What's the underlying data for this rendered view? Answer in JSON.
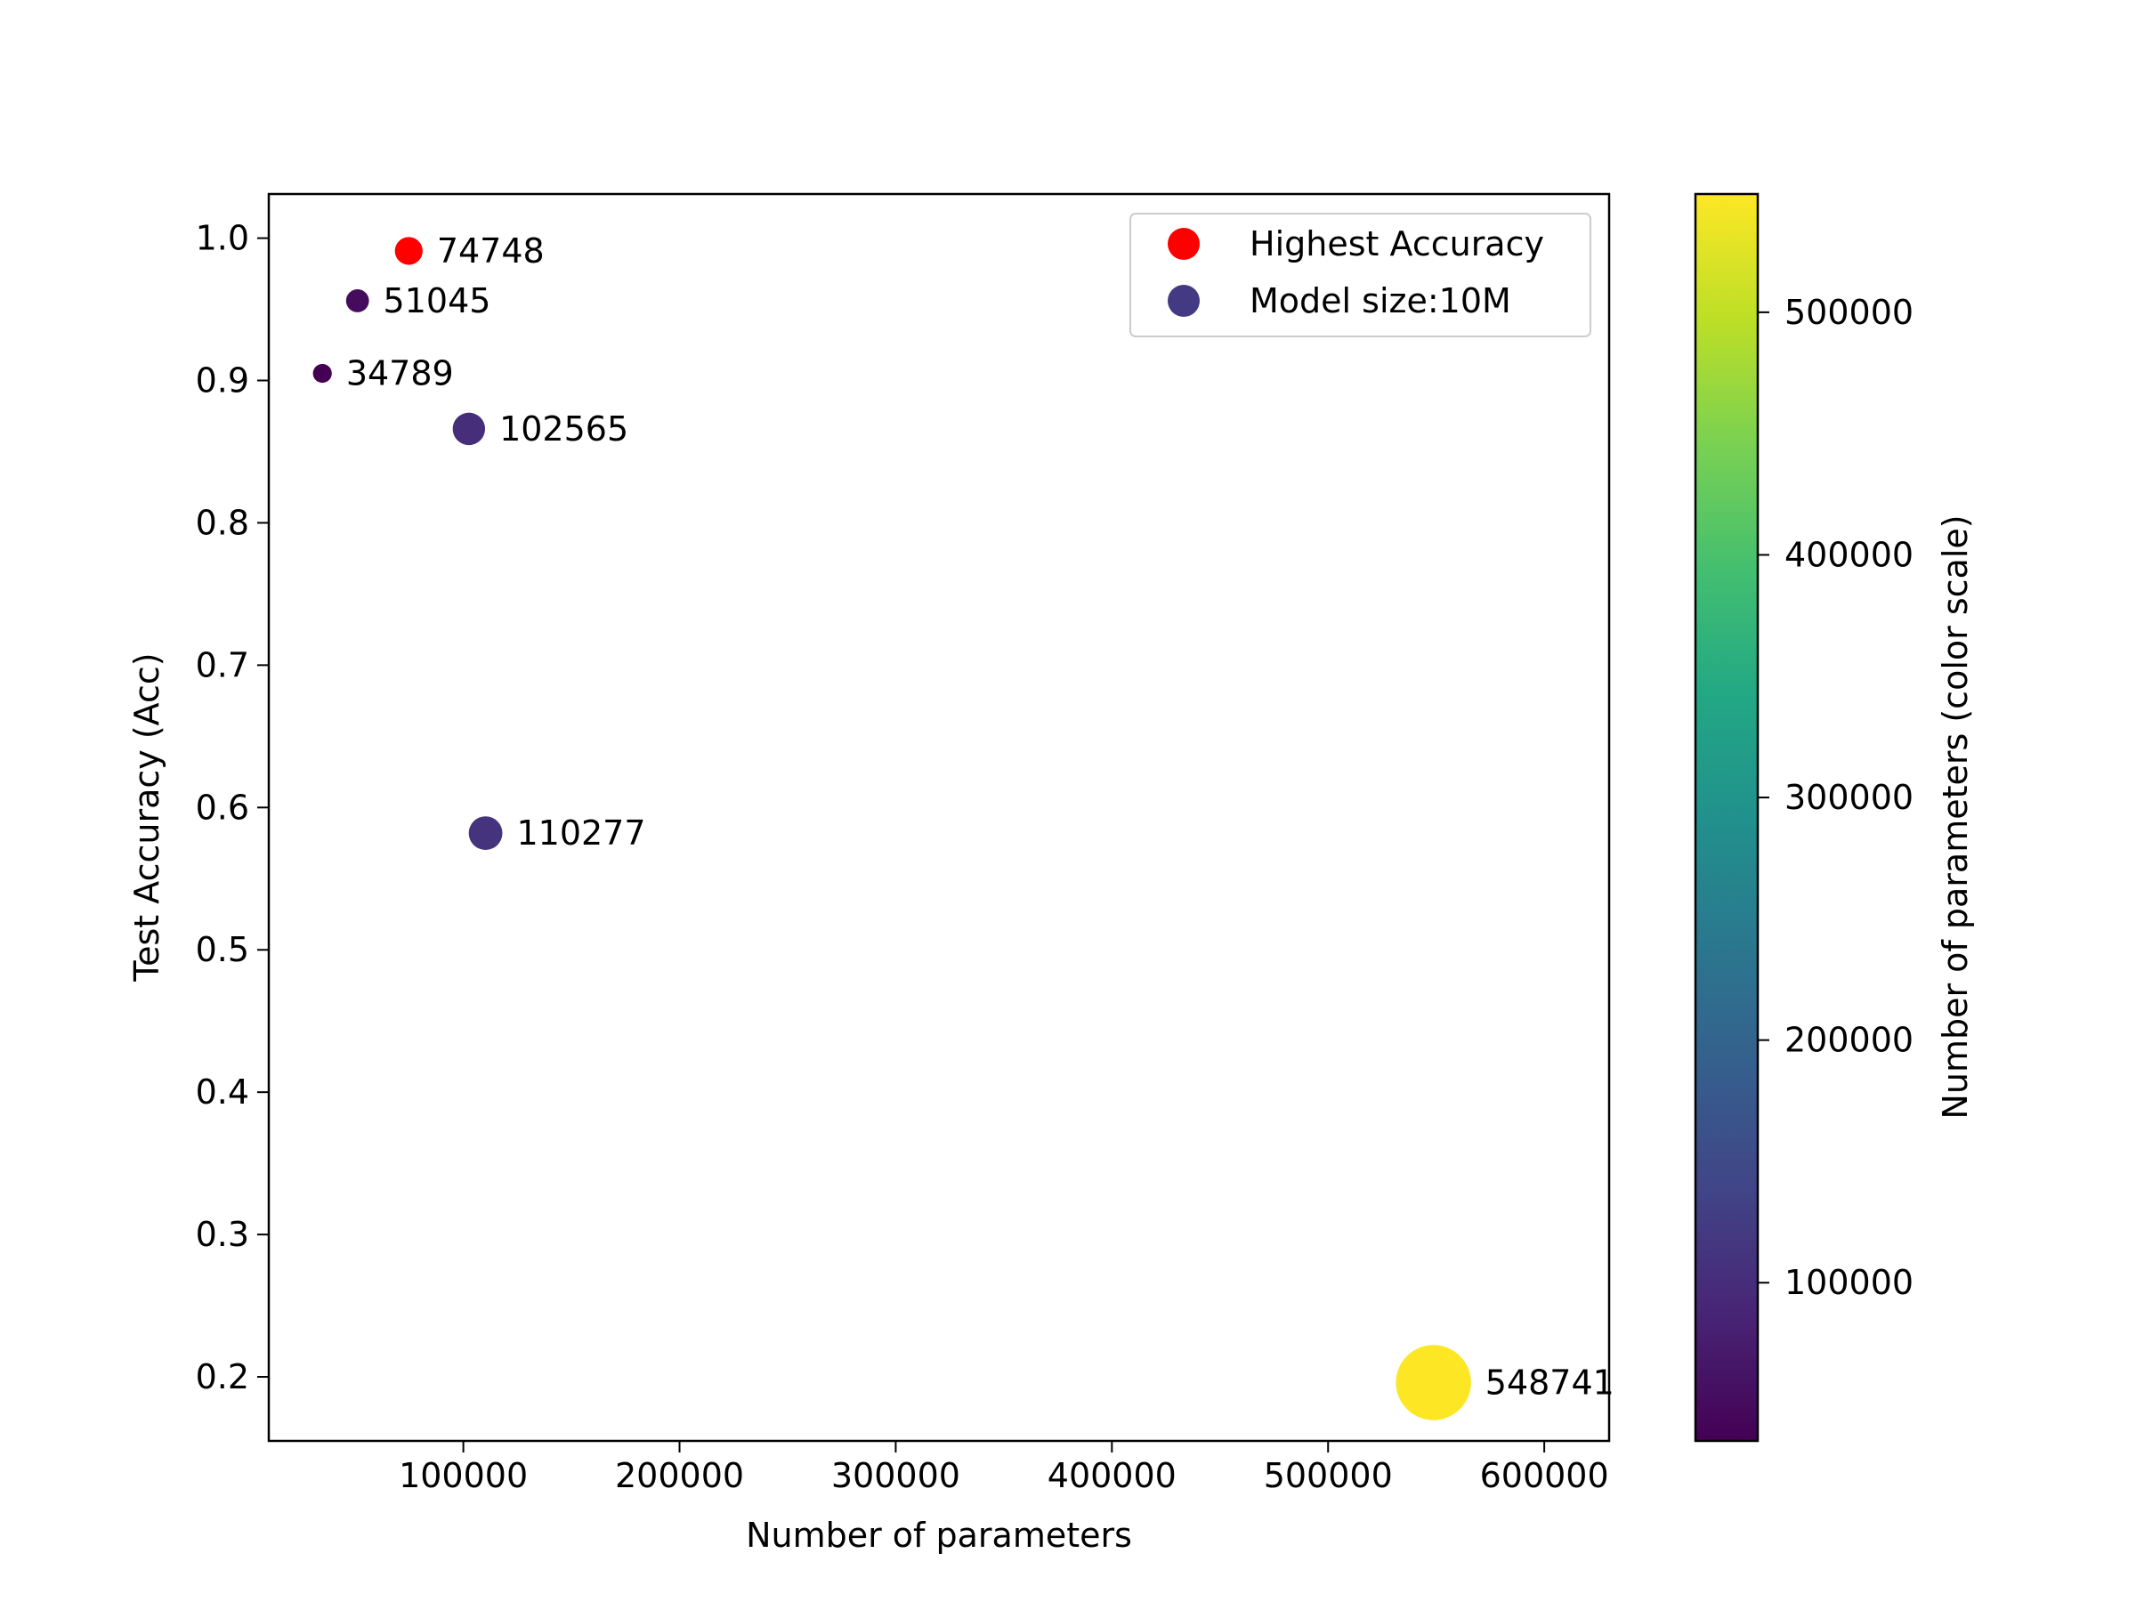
{
  "chart_data": {
    "type": "scatter",
    "xlabel": "Number of parameters",
    "ylabel": "Test Accuracy (Acc)",
    "xlim": [
      10000,
      630000
    ],
    "ylim": [
      0.155,
      1.031
    ],
    "x_ticks": [
      100000,
      200000,
      300000,
      400000,
      500000,
      600000
    ],
    "y_ticks": [
      0.2,
      0.3,
      0.4,
      0.5,
      0.6,
      0.7,
      0.8,
      0.9,
      1.0
    ],
    "x_tick_labels": [
      "100000",
      "200000",
      "300000",
      "400000",
      "500000",
      "600000"
    ],
    "y_tick_labels": [
      "0.2",
      "0.3",
      "0.4",
      "0.5",
      "0.6",
      "0.7",
      "0.8",
      "0.9",
      "1.0"
    ],
    "points": [
      {
        "x": 74748,
        "y": 0.991,
        "label": "74748",
        "highlight": true
      },
      {
        "x": 51045,
        "y": 0.956,
        "label": "51045",
        "highlight": false
      },
      {
        "x": 34789,
        "y": 0.905,
        "label": "34789",
        "highlight": false
      },
      {
        "x": 102565,
        "y": 0.866,
        "label": "102565",
        "highlight": false
      },
      {
        "x": 110277,
        "y": 0.582,
        "label": "110277",
        "highlight": false
      },
      {
        "x": 548741,
        "y": 0.196,
        "label": "548741",
        "highlight": false
      }
    ],
    "size_encodes": "Number of parameters",
    "color_encodes": "Number of parameters",
    "highlight_color": "#ff0000",
    "legend": {
      "placement": "top-right",
      "entries": [
        {
          "label": "Highest Accuracy",
          "color": "#ff0000"
        },
        {
          "label": "Model size:10M",
          "color": "#443983"
        }
      ]
    },
    "colorbar": {
      "label": "Number of parameters (color scale)",
      "colormap": "viridis",
      "range": [
        34789,
        548741
      ],
      "ticks": [
        100000,
        200000,
        300000,
        400000,
        500000
      ],
      "tick_labels": [
        "100000",
        "200000",
        "300000",
        "400000",
        "500000"
      ]
    },
    "grid": false
  }
}
